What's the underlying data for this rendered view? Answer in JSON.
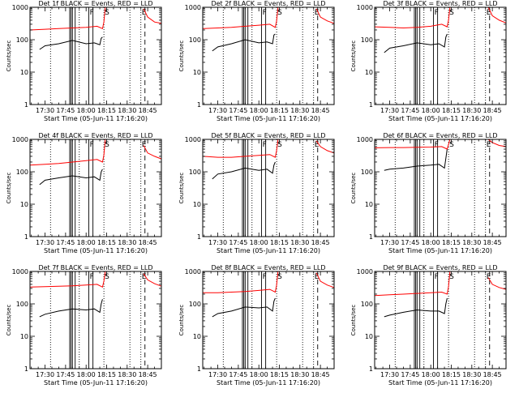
{
  "chart_data": {
    "type": "line",
    "y_scale": "log",
    "ylim": [
      1,
      1000
    ],
    "xlim": [
      "17:19",
      "18:55"
    ],
    "x_tick_labels": [
      "17:30",
      "17:45",
      "18:00",
      "18:15",
      "18:30",
      "18:45"
    ],
    "y_tick_labels": [
      "1",
      "10",
      "100",
      "1000"
    ],
    "ylabel": "Counts/sec",
    "xlabel": "Start Time (05-Jun-11 17:16:20)",
    "colors": {
      "events": "#000000",
      "lld": "#ff0000",
      "lines": "#000000"
    },
    "panels": [
      {
        "title": "Det 1f BLACK = Events, RED = LLD",
        "series": [
          {
            "key": "events",
            "x": [
              "17:26",
              "17:30",
              "17:40",
              "17:50",
              "18:00",
              "18:06",
              "18:10",
              "18:11",
              "18:12"
            ],
            "y": [
              50,
              65,
              75,
              95,
              75,
              80,
              70,
              110,
              120
            ]
          },
          {
            "key": "lld",
            "x": [
              "17:19",
              "17:30",
              "17:40",
              "17:50",
              "18:00",
              "18:08",
              "18:12",
              "18:13",
              "18:14"
            ],
            "y": [
              200,
              210,
              220,
              230,
              240,
              260,
              220,
              350,
              1000
            ]
          },
          {
            "key": "lld",
            "x": [
              "18:42",
              "18:45",
              "18:50",
              "18:55"
            ],
            "y": [
              900,
              500,
              350,
              320
            ]
          }
        ]
      },
      {
        "title": "Det 2f BLACK = Events, RED = LLD",
        "series": [
          {
            "key": "events",
            "x": [
              "17:26",
              "17:30",
              "17:40",
              "17:50",
              "18:00",
              "18:06",
              "18:10",
              "18:11",
              "18:12"
            ],
            "y": [
              45,
              60,
              75,
              100,
              80,
              85,
              75,
              140,
              150
            ]
          },
          {
            "key": "lld",
            "x": [
              "17:19",
              "17:30",
              "17:40",
              "17:50",
              "18:00",
              "18:08",
              "18:12",
              "18:13",
              "18:14"
            ],
            "y": [
              220,
              230,
              240,
              260,
              280,
              300,
              240,
              380,
              1000
            ]
          },
          {
            "key": "lld",
            "x": [
              "18:42",
              "18:45",
              "18:50",
              "18:55"
            ],
            "y": [
              900,
              500,
              380,
              320
            ]
          }
        ]
      },
      {
        "title": "Det 3f BLACK = Events, RED = LLD",
        "series": [
          {
            "key": "events",
            "x": [
              "17:26",
              "17:30",
              "17:40",
              "17:50",
              "18:00",
              "18:06",
              "18:10",
              "18:11",
              "18:12"
            ],
            "y": [
              40,
              55,
              65,
              80,
              70,
              75,
              60,
              120,
              150
            ]
          },
          {
            "key": "lld",
            "x": [
              "17:19",
              "17:30",
              "17:40",
              "17:50",
              "18:00",
              "18:08",
              "18:12",
              "18:13",
              "18:14"
            ],
            "y": [
              250,
              240,
              230,
              240,
              260,
              300,
              250,
              400,
              1000
            ]
          },
          {
            "key": "lld",
            "x": [
              "18:42",
              "18:45",
              "18:50",
              "18:55"
            ],
            "y": [
              1000,
              550,
              400,
              330
            ]
          }
        ]
      },
      {
        "title": "Det 4f BLACK = Events, RED = LLD",
        "series": [
          {
            "key": "events",
            "x": [
              "17:26",
              "17:30",
              "17:40",
              "17:50",
              "18:00",
              "18:06",
              "18:10",
              "18:11",
              "18:12"
            ],
            "y": [
              40,
              55,
              65,
              75,
              65,
              70,
              55,
              100,
              120
            ]
          },
          {
            "key": "lld",
            "x": [
              "17:19",
              "17:30",
              "17:40",
              "17:50",
              "18:00",
              "18:08",
              "18:12",
              "18:13",
              "18:14"
            ],
            "y": [
              160,
              170,
              180,
              200,
              220,
              240,
              200,
              330,
              1000
            ]
          },
          {
            "key": "lld",
            "x": [
              "18:42",
              "18:45",
              "18:50",
              "18:55"
            ],
            "y": [
              650,
              380,
              300,
              250
            ]
          }
        ]
      },
      {
        "title": "Det 5f BLACK = Events, RED = LLD",
        "series": [
          {
            "key": "events",
            "x": [
              "17:26",
              "17:30",
              "17:40",
              "17:50",
              "18:00",
              "18:06",
              "18:10",
              "18:11",
              "18:12"
            ],
            "y": [
              60,
              85,
              100,
              130,
              110,
              120,
              90,
              160,
              200
            ]
          },
          {
            "key": "lld",
            "x": [
              "17:19",
              "17:30",
              "17:40",
              "17:50",
              "18:00",
              "18:08",
              "18:12",
              "18:13",
              "18:14"
            ],
            "y": [
              300,
              280,
              280,
              300,
              320,
              340,
              280,
              450,
              1000
            ]
          },
          {
            "key": "lld",
            "x": [
              "18:42",
              "18:45",
              "18:50",
              "18:55"
            ],
            "y": [
              900,
              600,
              450,
              380
            ]
          }
        ]
      },
      {
        "title": "Det 6f BLACK = Events, RED = LLD",
        "series": [
          {
            "key": "events",
            "x": [
              "17:26",
              "17:30",
              "17:40",
              "17:50",
              "18:00",
              "18:06",
              "18:10",
              "18:11",
              "18:12"
            ],
            "y": [
              110,
              120,
              130,
              150,
              160,
              170,
              130,
              260,
              500
            ]
          },
          {
            "key": "lld",
            "x": [
              "17:19",
              "17:30",
              "17:40",
              "17:50",
              "18:00",
              "18:08",
              "18:12",
              "18:13",
              "18:14"
            ],
            "y": [
              550,
              560,
              560,
              570,
              580,
              600,
              500,
              700,
              1000
            ]
          },
          {
            "key": "lld",
            "x": [
              "18:42",
              "18:45",
              "18:50",
              "18:55"
            ],
            "y": [
              1000,
              800,
              650,
              600
            ]
          }
        ]
      },
      {
        "title": "Det 7f BLACK = Events, RED = LLD",
        "series": [
          {
            "key": "events",
            "x": [
              "17:26",
              "17:30",
              "17:40",
              "17:50",
              "18:00",
              "18:06",
              "18:10",
              "18:11",
              "18:12"
            ],
            "y": [
              40,
              48,
              60,
              70,
              65,
              70,
              55,
              100,
              140
            ]
          },
          {
            "key": "lld",
            "x": [
              "17:19",
              "17:30",
              "17:40",
              "17:50",
              "18:00",
              "18:08",
              "18:12",
              "18:13",
              "18:14"
            ],
            "y": [
              330,
              340,
              350,
              360,
              380,
              400,
              330,
              500,
              1000
            ]
          },
          {
            "key": "lld",
            "x": [
              "18:42",
              "18:45",
              "18:50",
              "18:55"
            ],
            "y": [
              850,
              550,
              420,
              350
            ]
          }
        ]
      },
      {
        "title": "Det 8f BLACK = Events, RED = LLD",
        "series": [
          {
            "key": "events",
            "x": [
              "17:26",
              "17:30",
              "17:40",
              "17:50",
              "18:00",
              "18:06",
              "18:10",
              "18:11",
              "18:12"
            ],
            "y": [
              40,
              50,
              60,
              80,
              75,
              80,
              60,
              120,
              150
            ]
          },
          {
            "key": "lld",
            "x": [
              "17:19",
              "17:30",
              "17:40",
              "17:50",
              "18:00",
              "18:08",
              "18:12",
              "18:13",
              "18:14"
            ],
            "y": [
              220,
              220,
              230,
              240,
              260,
              280,
              230,
              380,
              1000
            ]
          },
          {
            "key": "lld",
            "x": [
              "18:42",
              "18:45",
              "18:50",
              "18:55"
            ],
            "y": [
              900,
              500,
              380,
              320
            ]
          }
        ]
      },
      {
        "title": "Det 9f BLACK = Events, RED = LLD",
        "series": [
          {
            "key": "events",
            "x": [
              "17:26",
              "17:30",
              "17:40",
              "17:50",
              "18:00",
              "18:06",
              "18:10",
              "18:11",
              "18:12"
            ],
            "y": [
              40,
              45,
              55,
              65,
              60,
              60,
              50,
              100,
              150
            ]
          },
          {
            "key": "lld",
            "x": [
              "17:19",
              "17:30",
              "17:40",
              "17:50",
              "18:00",
              "18:08",
              "18:12",
              "18:13",
              "18:14"
            ],
            "y": [
              180,
              190,
              200,
              210,
              220,
              230,
              200,
              340,
              1000
            ]
          },
          {
            "key": "lld",
            "x": [
              "18:42",
              "18:45",
              "18:50",
              "18:55"
            ],
            "y": [
              650,
              400,
              320,
              280
            ]
          }
        ]
      }
    ],
    "event_lines": [
      {
        "x": "17:34",
        "style": "dotted",
        "label": ""
      },
      {
        "x": "17:48",
        "style": "solid",
        "label": ""
      },
      {
        "x": "17:49",
        "style": "solid",
        "label": ""
      },
      {
        "x": "17:50",
        "style": "solid",
        "label": ""
      },
      {
        "x": "17:52",
        "style": "solid",
        "label": ""
      },
      {
        "x": "17:55",
        "style": "dotted",
        "label": ""
      },
      {
        "x": "18:02",
        "style": "solid",
        "label": "F"
      },
      {
        "x": "18:05",
        "style": "solid",
        "label": ""
      },
      {
        "x": "18:13",
        "style": "dotted",
        "label": "S"
      },
      {
        "x": "18:32",
        "style": "dotted",
        "label": ""
      },
      {
        "x": "18:40",
        "style": "dotted",
        "label": "E"
      },
      {
        "x": "18:43",
        "style": "dashed",
        "label": ""
      }
    ]
  }
}
